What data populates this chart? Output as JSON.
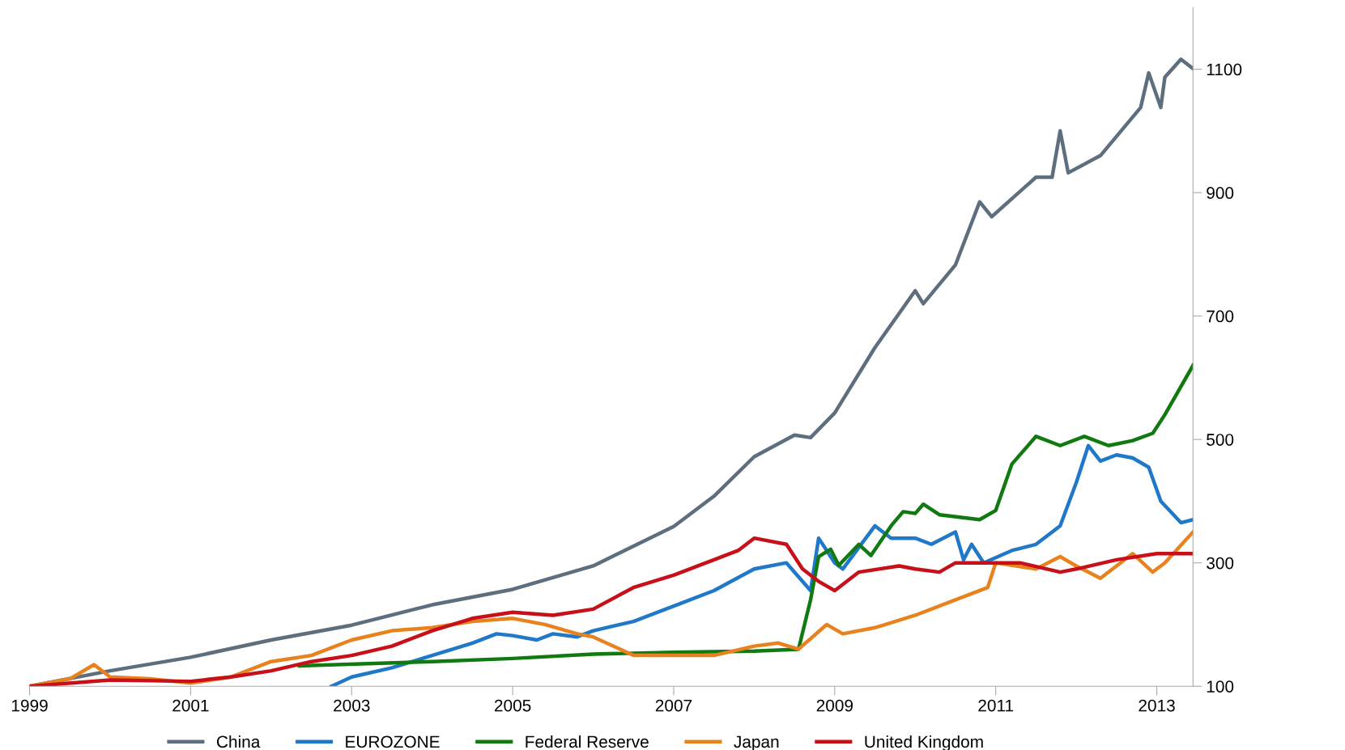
{
  "chart_data": {
    "type": "line",
    "xlim": [
      1999,
      2013.45
    ],
    "xticks": [
      1999,
      2001,
      2003,
      2005,
      2007,
      2009,
      2011,
      2013
    ],
    "ylim": [
      100,
      1200
    ],
    "yticks": [
      100,
      300,
      500,
      700,
      900,
      1100
    ],
    "grid": false,
    "legend": "bottom",
    "marker": "none",
    "line_style": "solid",
    "series": [
      {
        "name": "China",
        "color": "#5d6e7e",
        "x": [
          1999,
          2000,
          2001,
          2002,
          2003,
          2004,
          2005,
          2006,
          2007,
          2007.5,
          2008,
          2008.5,
          2008.7,
          2009,
          2009.5,
          2010,
          2010.1,
          2010.5,
          2010.8,
          2010.95,
          2011.5,
          2011.7,
          2011.8,
          2011.9,
          2012.3,
          2012.8,
          2012.9,
          2013.05,
          2013.1,
          2013.3,
          2013.45
        ],
        "values": [
          100,
          125,
          147,
          175,
          199,
          232,
          257,
          295,
          359,
          408,
          472,
          507,
          503,
          543,
          649,
          741,
          720,
          783,
          885,
          861,
          925,
          925,
          1000,
          932,
          960,
          1038,
          1094,
          1038,
          1087,
          1116,
          1101
        ]
      },
      {
        "name": "EUROZONE",
        "color": "#1f78c8",
        "x": [
          2002.75,
          2003,
          2003.5,
          2004,
          2004.5,
          2004.8,
          2005,
          2005.3,
          2005.5,
          2005.8,
          2006,
          2006.5,
          2007,
          2007.5,
          2008,
          2008.4,
          2008.7,
          2008.8,
          2009,
          2009.1,
          2009.5,
          2009.7,
          2010,
          2010.2,
          2010.5,
          2010.6,
          2010.7,
          2010.85,
          2011.2,
          2011.5,
          2011.8,
          2012,
          2012.15,
          2012.3,
          2012.5,
          2012.7,
          2012.9,
          2013.05,
          2013.3,
          2013.45
        ],
        "values": [
          100,
          115,
          130,
          150,
          170,
          185,
          182,
          175,
          185,
          180,
          190,
          205,
          230,
          255,
          290,
          300,
          255,
          340,
          300,
          290,
          360,
          340,
          340,
          330,
          350,
          305,
          330,
          300,
          320,
          330,
          360,
          430,
          490,
          465,
          475,
          470,
          455,
          400,
          365,
          370
        ]
      },
      {
        "name": "Federal Reserve",
        "color": "#107a10",
        "x": [
          2002.35,
          2004,
          2005,
          2006,
          2007,
          2008,
          2008.55,
          2008.7,
          2008.8,
          2008.95,
          2009.05,
          2009.3,
          2009.45,
          2009.7,
          2009.85,
          2010,
          2010.1,
          2010.3,
          2010.8,
          2011,
          2011.2,
          2011.5,
          2011.8,
          2012.1,
          2012.4,
          2012.7,
          2012.95,
          2013.1,
          2013.45
        ],
        "values": [
          133,
          140,
          145,
          152,
          155,
          157,
          160,
          240,
          310,
          322,
          296,
          330,
          312,
          360,
          383,
          380,
          395,
          378,
          370,
          385,
          460,
          505,
          490,
          505,
          490,
          498,
          510,
          540,
          620
        ]
      },
      {
        "name": "Japan",
        "color": "#e8821e",
        "x": [
          1999,
          1999.5,
          1999.8,
          2000,
          2000.5,
          2001,
          2001.5,
          2002,
          2002.5,
          2003,
          2003.5,
          2004,
          2004.5,
          2005,
          2005.4,
          2005.8,
          2006,
          2006.5,
          2007,
          2007.5,
          2008,
          2008.3,
          2008.55,
          2008.9,
          2009.1,
          2009.5,
          2010,
          2010.5,
          2010.9,
          2011,
          2011.5,
          2011.8,
          2012,
          2012.3,
          2012.7,
          2012.95,
          2013.1,
          2013.45
        ],
        "values": [
          100,
          112,
          135,
          115,
          112,
          105,
          115,
          140,
          150,
          175,
          190,
          195,
          205,
          210,
          200,
          185,
          180,
          150,
          150,
          150,
          165,
          170,
          160,
          200,
          185,
          195,
          215,
          240,
          260,
          300,
          290,
          310,
          295,
          275,
          315,
          285,
          300,
          350
        ]
      },
      {
        "name": "United Kingdom",
        "color": "#c8101a",
        "x": [
          1999,
          2000,
          2001,
          2001.5,
          2002,
          2002.5,
          2003,
          2003.5,
          2004,
          2004.5,
          2005,
          2005.5,
          2006,
          2006.5,
          2007,
          2007.5,
          2007.8,
          2008,
          2008.4,
          2008.6,
          2008.8,
          2009,
          2009.3,
          2009.8,
          2010,
          2010.3,
          2010.5,
          2011,
          2011.3,
          2011.8,
          2012,
          2012.5,
          2013,
          2013.45
        ],
        "values": [
          100,
          110,
          108,
          115,
          125,
          140,
          150,
          165,
          190,
          210,
          220,
          215,
          225,
          260,
          280,
          305,
          320,
          340,
          330,
          290,
          270,
          255,
          285,
          295,
          290,
          285,
          300,
          300,
          300,
          285,
          290,
          305,
          315,
          315
        ]
      }
    ]
  }
}
